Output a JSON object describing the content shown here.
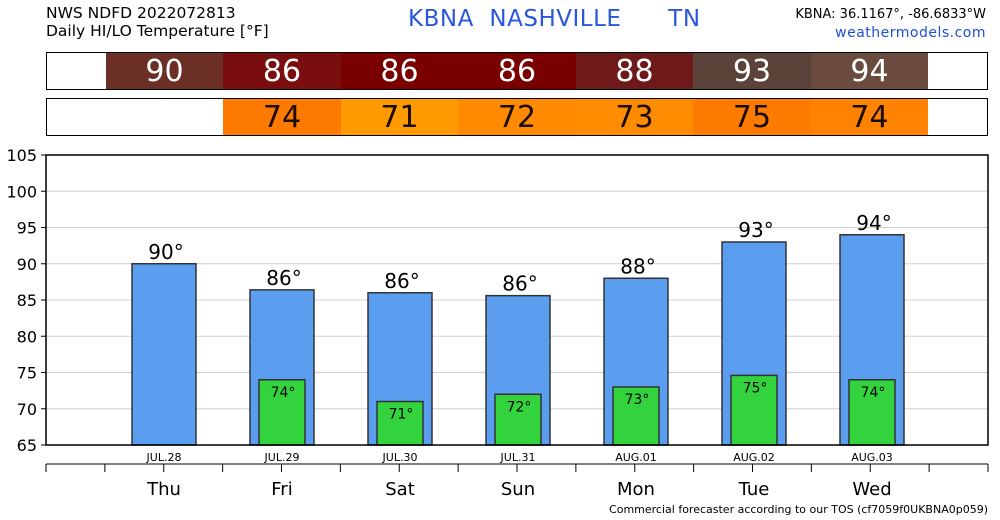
{
  "header": {
    "line1": "NWS NDFD 2022072813",
    "line2": "Daily HI/LO Temperature [°F]",
    "station": "KBNA  NASHVILLE      TN",
    "coords": "KBNA: 36.1167°, -86.6833°W",
    "site": "weathermodels.com"
  },
  "colors": {
    "hi_bar": "#5b9ef0",
    "lo_bar": "#33d33d",
    "hi_cells": [
      "#6b2f26",
      "#7a0d0d",
      "#7a0000",
      "#7a0000",
      "#6f1a1a",
      "#5c4339",
      "#6a4b3e"
    ],
    "lo_cells": [
      null,
      "#ff7a00",
      "#ff9a00",
      "#ff8a00",
      "#ff8c00",
      "#ff7b00",
      "#ff8300"
    ]
  },
  "footer": "Commercial forecaster according to our TOS (cf7059f0UKBNA0p059)",
  "chart_data": {
    "type": "bar",
    "dates": [
      "JUL.28",
      "JUL.29",
      "JUL.30",
      "JUL.31",
      "AUG.01",
      "AUG.02",
      "AUG.03"
    ],
    "days": [
      "Thu",
      "Fri",
      "Sat",
      "Sun",
      "Mon",
      "Tue",
      "Wed"
    ],
    "series": [
      {
        "values": [
          90,
          86.4,
          86,
          85.6,
          88,
          93,
          94
        ],
        "labels": [
          "90°",
          "86°",
          "86°",
          "86°",
          "88°",
          "93°",
          "94°"
        ],
        "row_labels": [
          "90",
          "86",
          "86",
          "86",
          "88",
          "93",
          "94"
        ]
      },
      {
        "values": [
          null,
          74,
          71,
          72,
          73,
          74.6,
          74
        ],
        "labels": [
          "",
          "74°",
          "71°",
          "72°",
          "73°",
          "75°",
          "74°"
        ],
        "row_labels": [
          "",
          "74",
          "71",
          "72",
          "73",
          "75",
          "74"
        ]
      }
    ],
    "ylim": [
      65,
      105
    ],
    "yticks": [
      65,
      70,
      75,
      80,
      85,
      90,
      95,
      100,
      105
    ],
    "ytick_labels": [
      "65",
      "70",
      "75",
      "80",
      "85",
      "90",
      "95",
      "100",
      "105"
    ],
    "grid": true
  }
}
